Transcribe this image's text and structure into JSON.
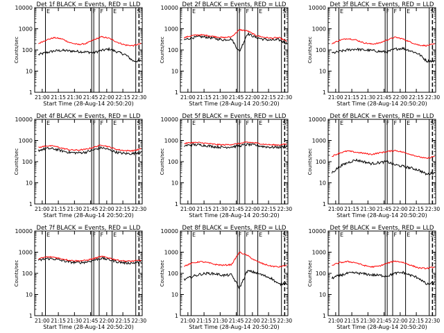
{
  "chart_data": [
    {
      "type": "line",
      "title": "Det 1f BLACK = Events, RED = LLD",
      "xlabel": "Start Time (28-Aug-14 20:50:20)",
      "ylabel": "Counts/sec",
      "yscale": "log",
      "ylim": [
        1,
        10000
      ],
      "y_ticks": [
        "1",
        "10",
        "100",
        "1000",
        "10000"
      ],
      "x_ticks": [
        "21:00",
        "21:15",
        "21:30",
        "21:45",
        "22:00",
        "22:15",
        "22:30"
      ],
      "markers": [
        "E",
        "F",
        "F",
        "E",
        "S"
      ],
      "series": [
        {
          "name": "BLACK = Events",
          "color": "#000000",
          "values": [
            60,
            75,
            90,
            95,
            90,
            85,
            80,
            75,
            95,
            110,
            80,
            60,
            30,
            30
          ]
        },
        {
          "name": "RED = LLD",
          "color": "#ff0000",
          "values": [
            200,
            300,
            380,
            330,
            220,
            180,
            200,
            300,
            420,
            350,
            230,
            170,
            160,
            200
          ]
        }
      ]
    },
    {
      "type": "line",
      "title": "Det 2f BLACK = Events, RED = LLD",
      "xlabel": "Start Time (28-Aug-14 20:50:20)",
      "ylabel": "Counts/sec",
      "yscale": "log",
      "ylim": [
        1,
        10000
      ],
      "y_ticks": [
        "1",
        "10",
        "100",
        "1000",
        "10000"
      ],
      "x_ticks": [
        "21:00",
        "21:15",
        "21:30",
        "21:45",
        "22:00",
        "22:15",
        "22:30"
      ],
      "markers": [
        "E",
        "F",
        "F",
        "E",
        "S"
      ],
      "series": [
        {
          "name": "BLACK = Events",
          "color": "#000000",
          "values": [
            300,
            380,
            420,
            400,
            340,
            300,
            330,
            80,
            600,
            400,
            320,
            290,
            300,
            200
          ]
        },
        {
          "name": "RED = LLD",
          "color": "#ff0000",
          "values": [
            380,
            480,
            520,
            480,
            420,
            380,
            420,
            900,
            800,
            500,
            400,
            360,
            380,
            260
          ]
        }
      ]
    },
    {
      "type": "line",
      "title": "Det 3f BLACK = Events, RED = LLD",
      "xlabel": "Start Time (28-Aug-14 20:50:20)",
      "ylabel": "Counts/sec",
      "yscale": "log",
      "ylim": [
        1,
        10000
      ],
      "y_ticks": [
        "1",
        "10",
        "100",
        "1000",
        "10000"
      ],
      "x_ticks": [
        "21:00",
        "21:15",
        "21:30",
        "21:45",
        "22:00",
        "22:15",
        "22:30"
      ],
      "markers": [
        "E",
        "F",
        "F",
        "E",
        "S"
      ],
      "series": [
        {
          "name": "BLACK = Events",
          "color": "#000000",
          "values": [
            70,
            85,
            100,
            110,
            100,
            95,
            85,
            80,
            110,
            120,
            90,
            65,
            30,
            30
          ]
        },
        {
          "name": "RED = LLD",
          "color": "#ff0000",
          "values": [
            200,
            290,
            350,
            300,
            220,
            190,
            210,
            300,
            400,
            330,
            230,
            170,
            160,
            190
          ]
        }
      ]
    },
    {
      "type": "line",
      "title": "Det 4f BLACK = Events, RED = LLD",
      "xlabel": "Start Time (28-Aug-14 20:50:20)",
      "ylabel": "Counts/sec",
      "yscale": "log",
      "ylim": [
        1,
        10000
      ],
      "y_ticks": [
        "1",
        "10",
        "100",
        "1000",
        "10000"
      ],
      "x_ticks": [
        "21:00",
        "21:15",
        "21:30",
        "21:45",
        "22:00",
        "22:15",
        "22:30"
      ],
      "markers": [
        "E",
        "F",
        "F",
        "E",
        "S"
      ],
      "series": [
        {
          "name": "BLACK = Events",
          "color": "#000000",
          "values": [
            340,
            420,
            400,
            320,
            270,
            260,
            280,
            360,
            460,
            360,
            270,
            240,
            240,
            290
          ]
        },
        {
          "name": "RED = LLD",
          "color": "#ff0000",
          "values": [
            460,
            560,
            540,
            430,
            360,
            350,
            380,
            480,
            620,
            490,
            370,
            330,
            330,
            400
          ]
        }
      ]
    },
    {
      "type": "line",
      "title": "Det 5f BLACK = Events, RED = LLD",
      "xlabel": "Start Time (28-Aug-14 20:50:20)",
      "ylabel": "Counts/sec",
      "yscale": "log",
      "ylim": [
        1,
        10000
      ],
      "y_ticks": [
        "1",
        "10",
        "100",
        "1000",
        "10000"
      ],
      "x_ticks": [
        "21:00",
        "21:15",
        "21:30",
        "21:45",
        "22:00",
        "22:15",
        "22:30"
      ],
      "markers": [
        "E",
        "F",
        "F",
        "E",
        "S"
      ],
      "series": [
        {
          "name": "BLACK = Events",
          "color": "#000000",
          "values": [
            560,
            630,
            620,
            560,
            500,
            480,
            500,
            560,
            650,
            600,
            520,
            480,
            480,
            520
          ]
        },
        {
          "name": "RED = LLD",
          "color": "#ff0000",
          "values": [
            720,
            800,
            790,
            720,
            650,
            620,
            650,
            720,
            830,
            770,
            670,
            620,
            620,
            680
          ]
        }
      ]
    },
    {
      "type": "line",
      "title": "Det 6f BLACK = Events, RED = LLD",
      "xlabel": "Start Time (28-Aug-14 20:50:20)",
      "ylabel": "Counts/sec",
      "yscale": "log",
      "ylim": [
        1,
        10000
      ],
      "y_ticks": [
        "1",
        "10",
        "100",
        "1000",
        "10000"
      ],
      "x_ticks": [
        "21:00",
        "21:15",
        "21:30",
        "21:45",
        "22:00",
        "22:15",
        "22:30"
      ],
      "markers": [
        "E",
        "F",
        "F",
        "E",
        "S"
      ],
      "series": [
        {
          "name": "BLACK = Events",
          "color": "#000000",
          "values": [
            30,
            60,
            90,
            120,
            100,
            80,
            90,
            100,
            70,
            60,
            50,
            40,
            25,
            30
          ]
        },
        {
          "name": "RED = LLD",
          "color": "#ff0000",
          "values": [
            180,
            260,
            320,
            280,
            250,
            220,
            260,
            300,
            340,
            280,
            220,
            170,
            140,
            180
          ]
        }
      ]
    },
    {
      "type": "line",
      "title": "Det 7f BLACK = Events, RED = LLD",
      "xlabel": "Start Time (28-Aug-14 20:50:20)",
      "ylabel": "Counts/sec",
      "yscale": "log",
      "ylim": [
        1,
        10000
      ],
      "y_ticks": [
        "1",
        "10",
        "100",
        "1000",
        "10000"
      ],
      "x_ticks": [
        "21:00",
        "21:15",
        "21:30",
        "21:45",
        "22:00",
        "22:15",
        "22:30"
      ],
      "markers": [
        "E",
        "F",
        "F",
        "E",
        "S"
      ],
      "series": [
        {
          "name": "BLACK = Events",
          "color": "#000000",
          "values": [
            400,
            500,
            480,
            400,
            340,
            320,
            340,
            420,
            520,
            440,
            350,
            310,
            310,
            350
          ]
        },
        {
          "name": "RED = LLD",
          "color": "#ff0000",
          "values": [
            480,
            600,
            580,
            480,
            410,
            390,
            410,
            500,
            630,
            530,
            420,
            380,
            380,
            420
          ]
        }
      ]
    },
    {
      "type": "line",
      "title": "Det 8f BLACK = Events, RED = LLD",
      "xlabel": "Start Time (28-Aug-14 20:50:20)",
      "ylabel": "Counts/sec",
      "yscale": "log",
      "ylim": [
        1,
        10000
      ],
      "y_ticks": [
        "1",
        "10",
        "100",
        "1000",
        "10000"
      ],
      "x_ticks": [
        "21:00",
        "21:15",
        "21:30",
        "21:45",
        "22:00",
        "22:15",
        "22:30"
      ],
      "markers": [
        "E",
        "F",
        "F",
        "E",
        "S"
      ],
      "series": [
        {
          "name": "BLACK = Events",
          "color": "#000000",
          "values": [
            50,
            70,
            90,
            100,
            95,
            80,
            85,
            20,
            130,
            110,
            80,
            60,
            30,
            35
          ]
        },
        {
          "name": "RED = LLD",
          "color": "#ff0000",
          "values": [
            220,
            300,
            360,
            320,
            260,
            240,
            260,
            1000,
            700,
            400,
            280,
            220,
            200,
            240
          ]
        }
      ]
    },
    {
      "type": "line",
      "title": "Det 9f BLACK = Events, RED = LLD",
      "xlabel": "Start Time (28-Aug-14 20:50:20)",
      "ylabel": "Counts/sec",
      "yscale": "log",
      "ylim": [
        1,
        10000
      ],
      "y_ticks": [
        "1",
        "10",
        "100",
        "1000",
        "10000"
      ],
      "x_ticks": [
        "21:00",
        "21:15",
        "21:30",
        "21:45",
        "22:00",
        "22:15",
        "22:30"
      ],
      "markers": [
        "E",
        "F",
        "F",
        "E",
        "S"
      ],
      "series": [
        {
          "name": "BLACK = Events",
          "color": "#000000",
          "values": [
            60,
            80,
            100,
            105,
            95,
            85,
            80,
            75,
            100,
            110,
            80,
            60,
            30,
            35
          ]
        },
        {
          "name": "RED = LLD",
          "color": "#ff0000",
          "values": [
            240,
            320,
            360,
            320,
            240,
            200,
            220,
            300,
            380,
            330,
            240,
            180,
            170,
            200
          ]
        }
      ]
    }
  ]
}
